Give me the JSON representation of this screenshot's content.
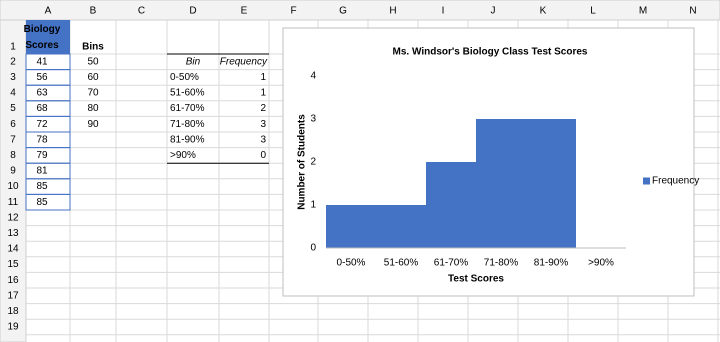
{
  "sheet": {
    "column_headers": [
      "A",
      "B",
      "C",
      "D",
      "E",
      "F",
      "G",
      "H",
      "I",
      "J",
      "K",
      "L",
      "M",
      "N"
    ],
    "row_headers": [
      1,
      2,
      3,
      4,
      5,
      6,
      7,
      8,
      9,
      10,
      11,
      12,
      13,
      14,
      15,
      16,
      17,
      18,
      19
    ],
    "scores_header": "Biology Scores",
    "scores": [
      41,
      56,
      63,
      68,
      72,
      78,
      79,
      81,
      85,
      85
    ],
    "bins_header": "Bins",
    "bins": [
      50,
      60,
      70,
      80,
      90
    ],
    "freq_table": {
      "headers": [
        "Bin",
        "Frequency"
      ],
      "rows": [
        [
          "0-50%",
          1
        ],
        [
          "51-60%",
          1
        ],
        [
          "61-70%",
          2
        ],
        [
          "71-80%",
          3
        ],
        [
          "81-90%",
          3
        ],
        [
          ">90%",
          0
        ]
      ]
    }
  },
  "chart_data": {
    "type": "bar",
    "title": "Ms. Windsor's Biology Class Test Scores",
    "x_label": "Test Scores",
    "y_label": "Number of Students",
    "categories": [
      "0-50%",
      "51-60%",
      "61-70%",
      "71-80%",
      "81-90%",
      ">90%"
    ],
    "series": [
      {
        "name": "Frequency",
        "color": "#4472c4",
        "values": [
          1,
          1,
          2,
          3,
          3,
          0
        ]
      }
    ],
    "ylim": [
      0,
      4
    ],
    "yticks": [
      0,
      1,
      2,
      3,
      4
    ],
    "legend": "right"
  }
}
